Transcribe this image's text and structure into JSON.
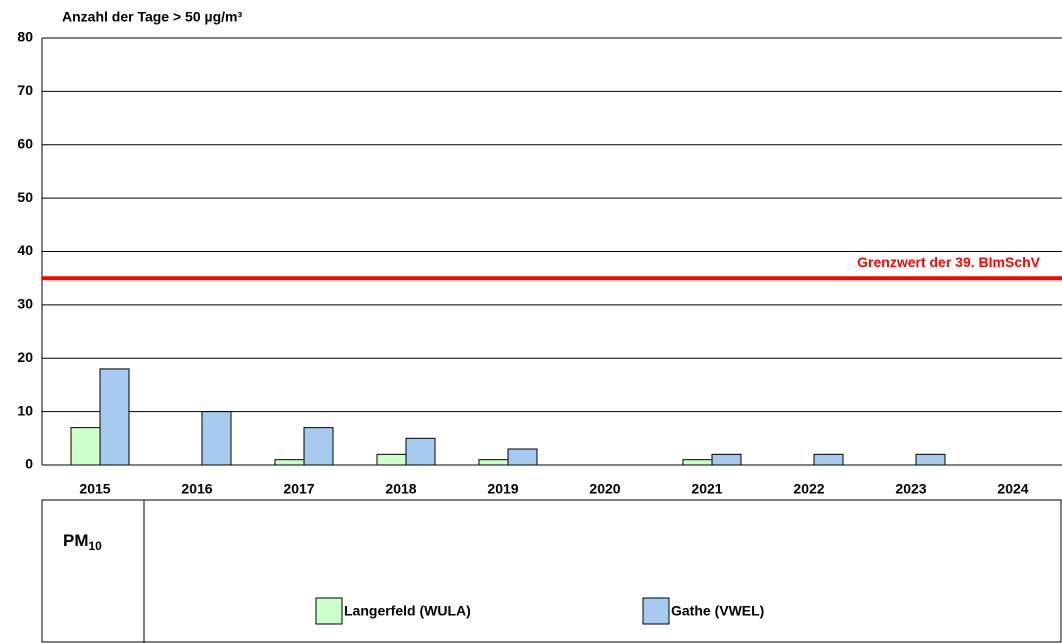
{
  "chart_data": {
    "type": "bar",
    "y_axis_label": "Anzahl der Tage > 50 µg/m³",
    "categories": [
      "2015",
      "2016",
      "2017",
      "2018",
      "2019",
      "2020",
      "2021",
      "2022",
      "2023",
      "2024"
    ],
    "series": [
      {
        "name": "Langerfeld (WULA)",
        "color": "#ccffcc",
        "values": [
          7,
          0,
          1,
          2,
          1,
          0,
          1,
          0,
          0,
          0
        ]
      },
      {
        "name": "Gathe (VWEL)",
        "color": "#a6caf0",
        "values": [
          18,
          10,
          7,
          5,
          3,
          0,
          2,
          2,
          2,
          0
        ]
      }
    ],
    "ylim": [
      0,
      80
    ],
    "yticks": [
      0,
      10,
      20,
      30,
      40,
      50,
      60,
      70,
      80
    ],
    "grid": true,
    "threshold": {
      "value": 35,
      "label": "Grenzwert der 39. BImSchV",
      "color": "#ff0000"
    },
    "legend_title": {
      "main": "PM",
      "sub": "10"
    }
  }
}
